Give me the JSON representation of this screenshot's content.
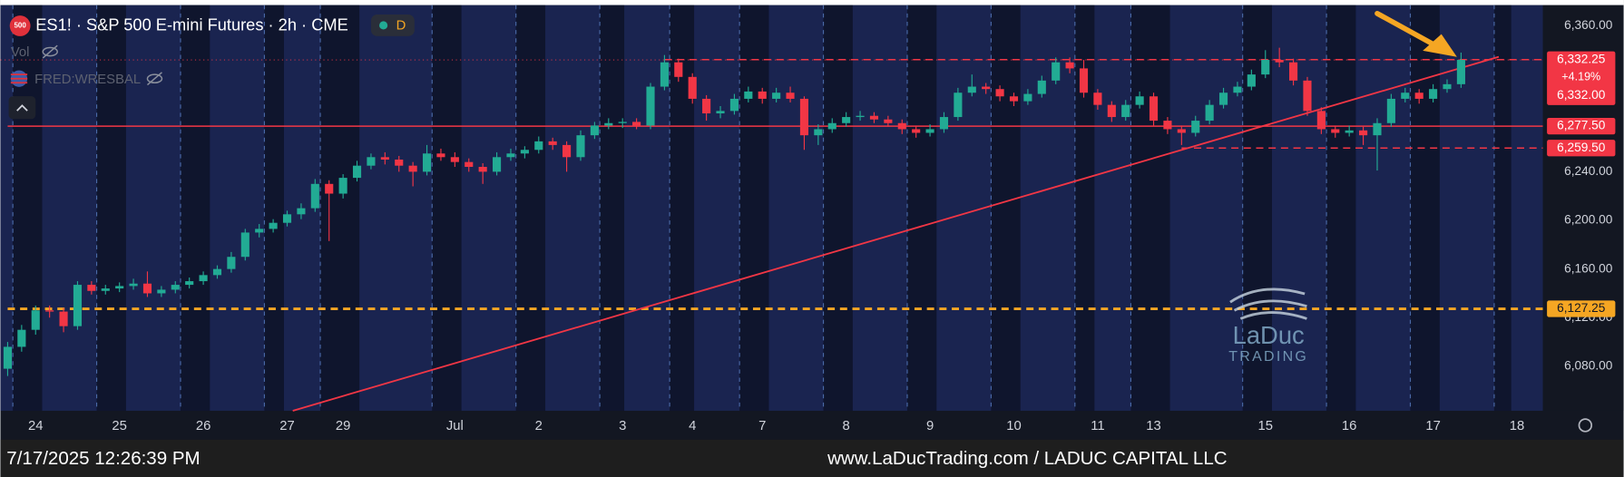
{
  "chart_data": {
    "type": "candlestick",
    "title": "ES1! · S&P 500 E-mini Futures · 2h · CME",
    "symbol_badge": "500",
    "resolution_badge": "D",
    "indicators": [
      "Vol",
      "FRED:WRESBAL"
    ],
    "categories": [
      null,
      null,
      "24",
      null,
      null,
      null,
      null,
      null,
      "25",
      null,
      null,
      null,
      null,
      null,
      "26",
      null,
      null,
      null,
      null,
      null,
      "27",
      null,
      null,
      null,
      "29",
      null,
      null,
      null,
      null,
      null,
      null,
      null,
      "Jul",
      null,
      null,
      null,
      null,
      null,
      "2",
      null,
      null,
      null,
      null,
      null,
      "3",
      null,
      null,
      null,
      null,
      "4",
      null,
      null,
      null,
      null,
      "7",
      null,
      null,
      null,
      null,
      null,
      "8",
      null,
      null,
      null,
      null,
      null,
      "9",
      null,
      null,
      null,
      null,
      null,
      "10",
      null,
      null,
      null,
      null,
      null,
      "11",
      null,
      null,
      null,
      "13",
      null,
      null,
      null,
      null,
      null,
      null,
      null,
      "15",
      null,
      null,
      null,
      null,
      null,
      "16",
      null,
      null,
      null,
      null,
      null,
      "17",
      null,
      null,
      null,
      null,
      null,
      "18"
    ],
    "candles": [
      [
        6078,
        6100,
        6072,
        6096
      ],
      [
        6096,
        6114,
        6092,
        6110
      ],
      [
        6110,
        6130,
        6106,
        6126
      ],
      [
        6126,
        6130,
        6120,
        6125
      ],
      [
        6125,
        6128,
        6108,
        6113
      ],
      [
        6113,
        6150,
        6110,
        6147
      ],
      [
        6147,
        6150,
        6139,
        6142
      ],
      [
        6142,
        6147,
        6139,
        6144
      ],
      [
        6144,
        6149,
        6141,
        6146
      ],
      [
        6146,
        6152,
        6143,
        6148
      ],
      [
        6148,
        6158,
        6137,
        6140
      ],
      [
        6140,
        6146,
        6137,
        6143
      ],
      [
        6143,
        6150,
        6140,
        6147
      ],
      [
        6147,
        6153,
        6144,
        6150
      ],
      [
        6150,
        6158,
        6147,
        6155
      ],
      [
        6155,
        6163,
        6152,
        6160
      ],
      [
        6160,
        6174,
        6157,
        6170
      ],
      [
        6170,
        6193,
        6167,
        6190
      ],
      [
        6190,
        6197,
        6186,
        6193
      ],
      [
        6193,
        6201,
        6190,
        6198
      ],
      [
        6198,
        6208,
        6195,
        6205
      ],
      [
        6205,
        6214,
        6201,
        6210
      ],
      [
        6210,
        6234,
        6207,
        6230
      ],
      [
        6230,
        6233,
        6183,
        6222
      ],
      [
        6222,
        6238,
        6218,
        6235
      ],
      [
        6235,
        6249,
        6232,
        6245
      ],
      [
        6245,
        6255,
        6242,
        6252
      ],
      [
        6252,
        6256,
        6246,
        6250
      ],
      [
        6250,
        6253,
        6240,
        6245
      ],
      [
        6245,
        6248,
        6228,
        6240
      ],
      [
        6240,
        6262,
        6237,
        6255
      ],
      [
        6255,
        6259,
        6249,
        6252
      ],
      [
        6252,
        6256,
        6244,
        6248
      ],
      [
        6248,
        6251,
        6240,
        6244
      ],
      [
        6244,
        6247,
        6230,
        6240
      ],
      [
        6240,
        6256,
        6237,
        6252
      ],
      [
        6252,
        6259,
        6249,
        6255
      ],
      [
        6255,
        6261,
        6251,
        6258
      ],
      [
        6258,
        6269,
        6255,
        6265
      ],
      [
        6265,
        6268,
        6258,
        6262
      ],
      [
        6262,
        6265,
        6240,
        6252
      ],
      [
        6252,
        6274,
        6249,
        6270
      ],
      [
        6270,
        6281,
        6267,
        6278
      ],
      [
        6278,
        6284,
        6275,
        6280
      ],
      [
        6280,
        6284,
        6276,
        6281
      ],
      [
        6281,
        6284,
        6275,
        6278
      ],
      [
        6278,
        6313,
        6275,
        6310
      ],
      [
        6310,
        6336,
        6307,
        6330
      ],
      [
        6330,
        6333,
        6314,
        6318
      ],
      [
        6318,
        6321,
        6296,
        6300
      ],
      [
        6300,
        6303,
        6282,
        6288
      ],
      [
        6288,
        6294,
        6284,
        6290
      ],
      [
        6290,
        6304,
        6287,
        6300
      ],
      [
        6300,
        6310,
        6297,
        6306
      ],
      [
        6306,
        6309,
        6296,
        6300
      ],
      [
        6300,
        6309,
        6297,
        6305
      ],
      [
        6305,
        6310,
        6297,
        6300
      ],
      [
        6300,
        6302,
        6258,
        6270
      ],
      [
        6270,
        6279,
        6262,
        6275
      ],
      [
        6275,
        6284,
        6272,
        6280
      ],
      [
        6280,
        6289,
        6277,
        6285
      ],
      [
        6285,
        6290,
        6282,
        6286
      ],
      [
        6286,
        6289,
        6280,
        6283
      ],
      [
        6283,
        6286,
        6277,
        6280
      ],
      [
        6280,
        6283,
        6271,
        6275
      ],
      [
        6275,
        6278,
        6268,
        6272
      ],
      [
        6272,
        6279,
        6269,
        6275
      ],
      [
        6275,
        6289,
        6272,
        6285
      ],
      [
        6285,
        6309,
        6282,
        6305
      ],
      [
        6305,
        6320,
        6302,
        6310
      ],
      [
        6310,
        6313,
        6304,
        6308
      ],
      [
        6308,
        6311,
        6298,
        6302
      ],
      [
        6302,
        6305,
        6294,
        6298
      ],
      [
        6298,
        6308,
        6295,
        6304
      ],
      [
        6304,
        6319,
        6301,
        6315
      ],
      [
        6315,
        6334,
        6312,
        6330
      ],
      [
        6330,
        6334,
        6321,
        6325
      ],
      [
        6325,
        6332,
        6301,
        6305
      ],
      [
        6305,
        6308,
        6291,
        6295
      ],
      [
        6295,
        6298,
        6281,
        6285
      ],
      [
        6285,
        6299,
        6282,
        6295
      ],
      [
        6295,
        6306,
        6292,
        6302
      ],
      [
        6302,
        6305,
        6278,
        6282
      ],
      [
        6282,
        6285,
        6271,
        6275
      ],
      [
        6275,
        6278,
        6262,
        6272
      ],
      [
        6272,
        6286,
        6269,
        6282
      ],
      [
        6282,
        6299,
        6279,
        6295
      ],
      [
        6295,
        6309,
        6292,
        6305
      ],
      [
        6305,
        6314,
        6302,
        6310
      ],
      [
        6310,
        6324,
        6307,
        6320
      ],
      [
        6320,
        6340,
        6317,
        6332
      ],
      [
        6332,
        6342,
        6326,
        6330
      ],
      [
        6330,
        6333,
        6311,
        6315
      ],
      [
        6315,
        6318,
        6286,
        6290
      ],
      [
        6290,
        6293,
        6271,
        6275
      ],
      [
        6275,
        6278,
        6268,
        6272
      ],
      [
        6272,
        6278,
        6269,
        6274
      ],
      [
        6274,
        6277,
        6262,
        6270
      ],
      [
        6270,
        6284,
        6241,
        6280
      ],
      [
        6280,
        6304,
        6277,
        6300
      ],
      [
        6300,
        6309,
        6297,
        6305
      ],
      [
        6305,
        6308,
        6296,
        6300
      ],
      [
        6300,
        6312,
        6297,
        6308
      ],
      [
        6308,
        6316,
        6305,
        6312
      ],
      [
        6312,
        6338,
        6309,
        6332
      ],
      null,
      null,
      null,
      null
    ],
    "up_color": "#22ab94",
    "down_color": "#f23645",
    "ylim": [
      6043.4,
      6377.0
    ],
    "yticks": [
      {
        "value": 6360,
        "label": "6,360.00"
      },
      {
        "value": 6240,
        "label": "6,240.00"
      },
      {
        "value": 6200,
        "label": "6,200.00"
      },
      {
        "value": 6160,
        "label": "6,160.00"
      },
      {
        "value": 6120,
        "label": "6,120.00"
      },
      {
        "value": 6080,
        "label": "6,080.00"
      }
    ],
    "levels": [
      {
        "value": 6332.25,
        "label": "6,332.25",
        "color": "#f23645",
        "style": "dashed",
        "from_index": 47
      },
      {
        "value": 6277.5,
        "label": "6,277.50",
        "color": "#f23645",
        "style": "solid",
        "from_index": 0
      },
      {
        "value": 6259.5,
        "label": "6,259.50",
        "color": "#f23645",
        "style": "dashed",
        "from_index": 84
      },
      {
        "value": 6127.25,
        "label": "6,127.25",
        "color": "#f5a623",
        "style": "dashed",
        "from_index": 0
      }
    ],
    "last_price": {
      "value": 6332,
      "label": "6,332.00"
    },
    "change": {
      "value": 4.19,
      "label": "+4.19%"
    },
    "trendline": {
      "from": [
        20.4,
        6043.4
      ],
      "to": [
        106.7,
        6334.5
      ],
      "color": "#f23645"
    },
    "watermark": [
      "LaDuc",
      "TRADING"
    ],
    "footer": {
      "timestamp": "7/17/2025 12:26:39 PM",
      "credit": "www.LaDucTrading.com / LADUC CAPITAL LLC"
    }
  }
}
